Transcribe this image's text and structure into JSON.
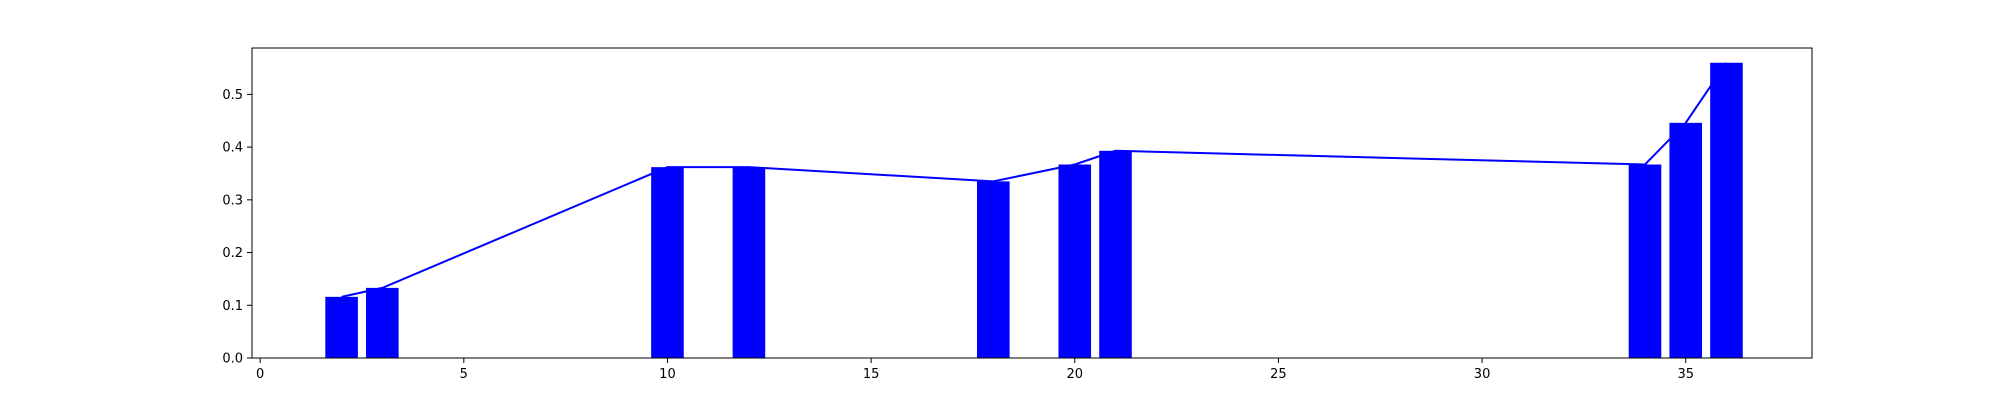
{
  "chart_data": {
    "type": "bar",
    "x": [
      2,
      3,
      10,
      12,
      18,
      20,
      21,
      34,
      35,
      36
    ],
    "values": [
      0.116,
      0.133,
      0.362,
      0.362,
      0.335,
      0.367,
      0.393,
      0.367,
      0.446,
      0.56
    ],
    "line_overlay": true,
    "title": "",
    "xlabel": "",
    "ylabel": "",
    "xlim": [
      -0.2,
      38.1
    ],
    "ylim": [
      0,
      0.588
    ],
    "xticks": [
      0,
      5,
      10,
      15,
      20,
      25,
      30,
      35
    ],
    "yticks": [
      0.0,
      0.1,
      0.2,
      0.3,
      0.4,
      0.5
    ],
    "grid": false,
    "legend": "none",
    "colors": {
      "bar": "#0000ff",
      "line": "#0000ff",
      "axes": "#000000"
    }
  }
}
